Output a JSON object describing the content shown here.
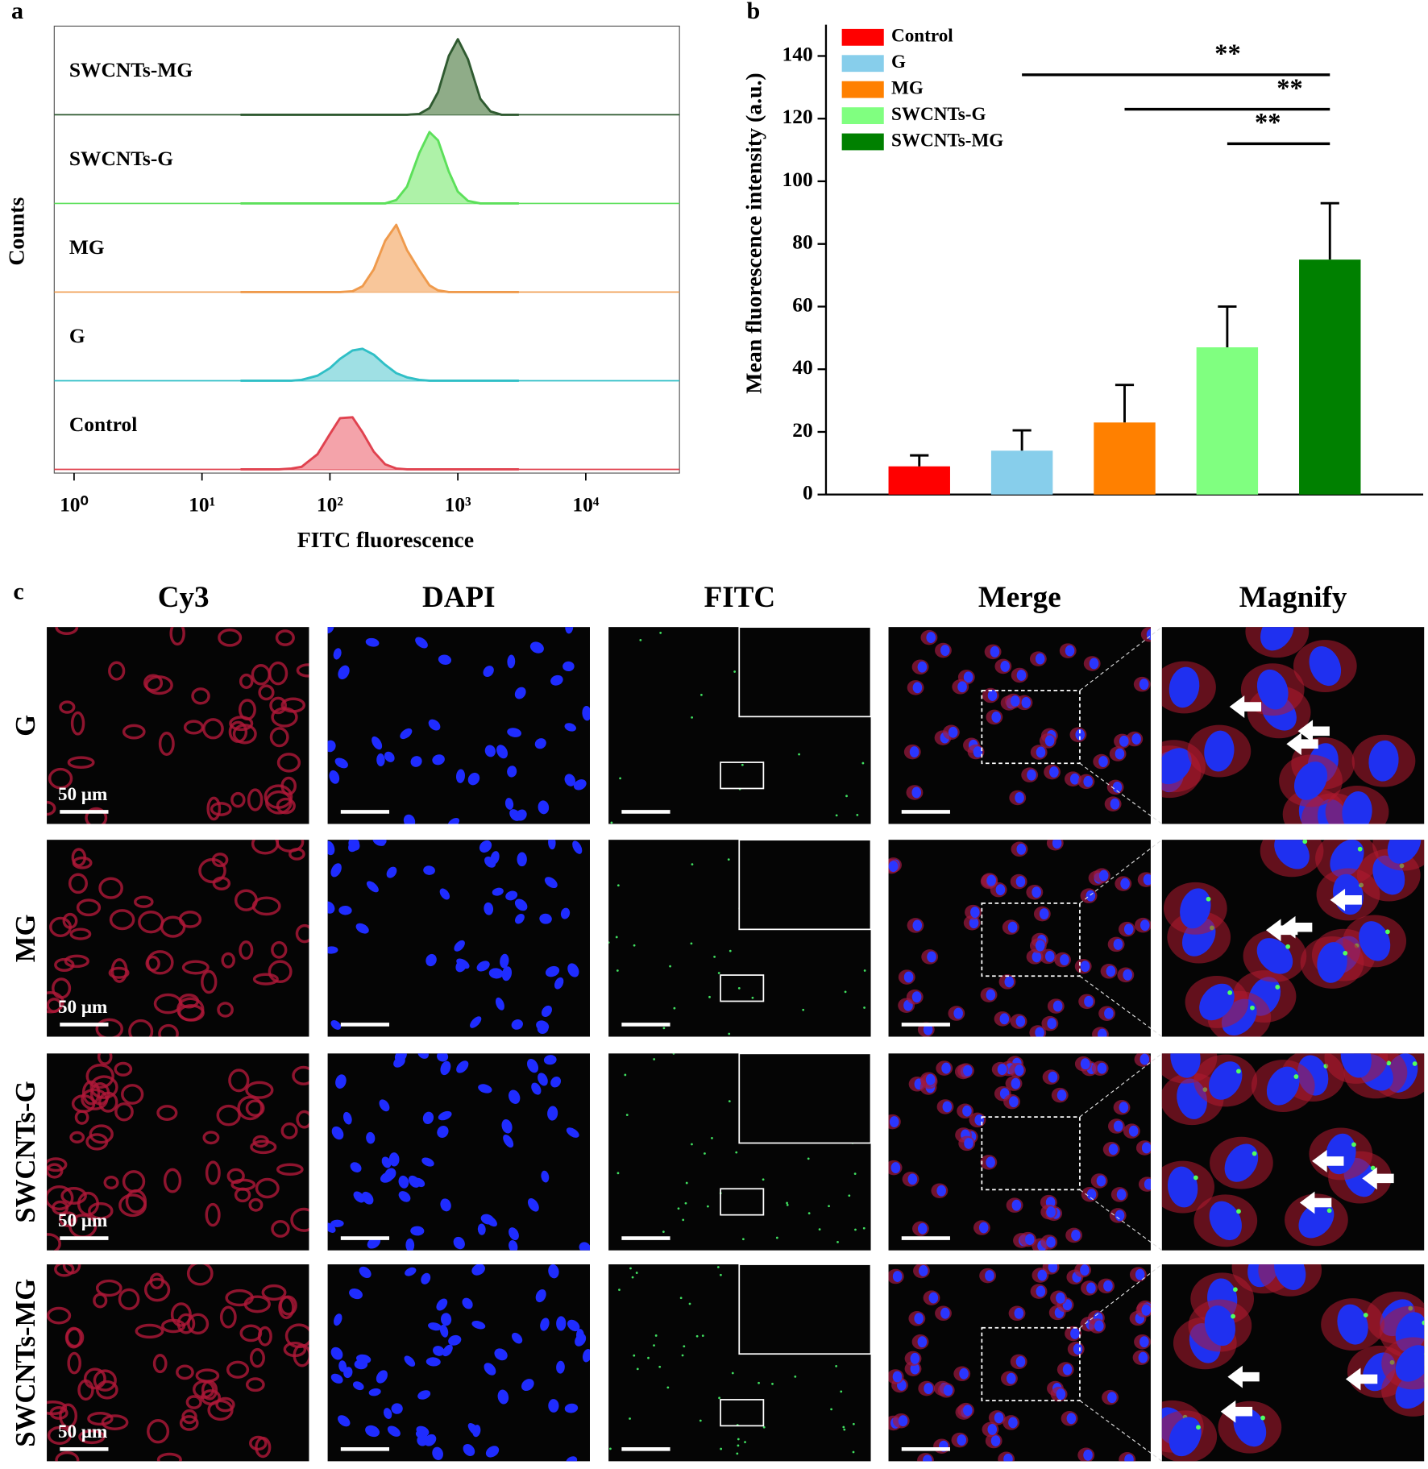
{
  "chart_data": [
    {
      "type": "density-ridges",
      "panel_label": "a",
      "x_label": "FITC fluorescence",
      "y_label": "Counts",
      "log_x": true,
      "xlim": [
        0.7,
        54000
      ],
      "xticks": [
        {
          "value": 1,
          "label": "10⁰"
        },
        {
          "value": 10,
          "label": "10¹"
        },
        {
          "value": 100,
          "label": "10²"
        },
        {
          "value": 1000,
          "label": "10³"
        },
        {
          "value": 10000,
          "label": "10⁴"
        }
      ],
      "ylim": [
        0,
        100
      ],
      "x": [
        20,
        30,
        40,
        50,
        60,
        80,
        100,
        120,
        150,
        180,
        220,
        270,
        330,
        400,
        500,
        600,
        700,
        850,
        1000,
        1200,
        1500,
        1800,
        2200,
        3000
      ],
      "series": [
        {
          "name": "SWCNTs-MG",
          "color": "#2f5a30",
          "fill": "#8fac88",
          "values": [
            0,
            0,
            0,
            0,
            0,
            0,
            0,
            0,
            0,
            0,
            0,
            0,
            0,
            0,
            1,
            8,
            27,
            70,
            90,
            66,
            19,
            4,
            0,
            0
          ]
        },
        {
          "name": "SWCNTs-G",
          "color": "#5ce05a",
          "fill": "#aef2a8",
          "values": [
            0,
            0,
            0,
            0,
            0,
            0,
            0,
            0,
            0,
            0,
            0,
            0,
            4,
            20,
            60,
            85,
            75,
            38,
            14,
            3,
            0,
            0,
            0,
            0
          ]
        },
        {
          "name": "MG",
          "color": "#ef9a4c",
          "fill": "#f8c69a",
          "values": [
            0,
            0,
            0,
            0,
            0,
            0,
            0,
            0,
            1,
            7,
            27,
            61,
            80,
            50,
            26,
            8,
            2,
            0,
            0,
            0,
            0,
            0,
            0,
            0
          ]
        },
        {
          "name": "G",
          "color": "#2fbfc6",
          "fill": "#9fe0e4",
          "values": [
            0,
            0,
            0,
            0,
            1,
            6,
            15,
            26,
            36,
            38,
            31,
            19,
            9,
            4,
            1,
            0,
            0,
            0,
            0,
            0,
            0,
            0,
            0,
            0
          ]
        },
        {
          "name": "Control",
          "color": "#e0424f",
          "fill": "#f4a3aa",
          "values": [
            0,
            0,
            0,
            1,
            3,
            18,
            42,
            61,
            62,
            44,
            21,
            6,
            1,
            0,
            0,
            0,
            0,
            0,
            0,
            0,
            0,
            0,
            0,
            0
          ]
        }
      ]
    },
    {
      "type": "bar",
      "panel_label": "b",
      "y_label": "Mean fluorescence intensity (a.u.)",
      "categories": [
        "Control",
        "G",
        "MG",
        "SWCNTs-G",
        "SWCNTs-MG"
      ],
      "colors": [
        "#ff0000",
        "#87ceeb",
        "#ff8000",
        "#80ff80",
        "#008000"
      ],
      "values": [
        9,
        14,
        23,
        47,
        75
      ],
      "errors": [
        3.5,
        6.5,
        12,
        13,
        18
      ],
      "ylim": [
        0,
        150
      ],
      "yticks": [
        0,
        20,
        40,
        60,
        80,
        100,
        120,
        140
      ],
      "legend": "upper-left",
      "significance": [
        {
          "label": "**",
          "between": [
            "G",
            "SWCNTs-MG"
          ],
          "y": 134
        },
        {
          "label": "**",
          "between": [
            "MG",
            "SWCNTs-MG"
          ],
          "y": 123
        },
        {
          "label": "**",
          "between": [
            "SWCNTs-G",
            "SWCNTs-MG"
          ],
          "y": 112
        }
      ]
    }
  ],
  "microscopy": {
    "panel_label": "c",
    "columns": [
      "Cy3",
      "DAPI",
      "FITC",
      "Merge",
      "Magnify"
    ],
    "rows": [
      "G",
      "MG",
      "SWCNTs-G",
      "SWCNTs-MG"
    ],
    "scale_bar_label": "50 μm"
  }
}
